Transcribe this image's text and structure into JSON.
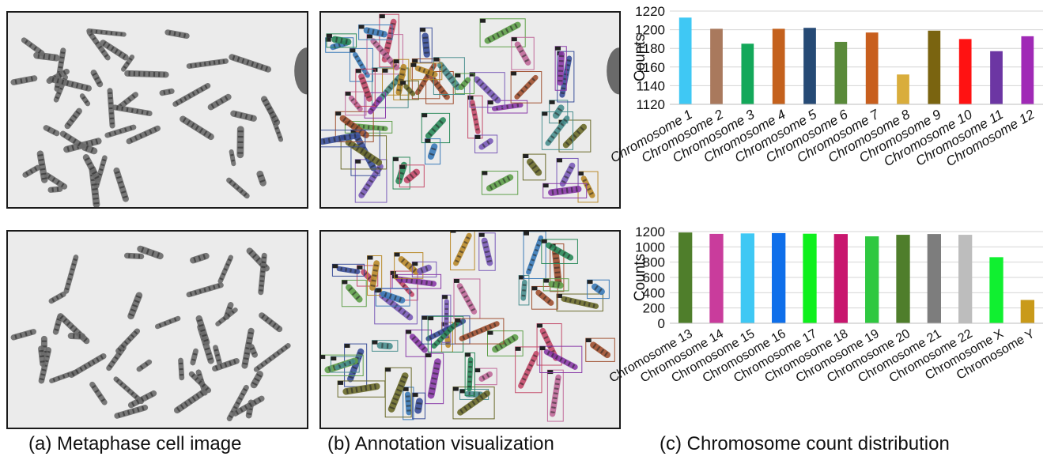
{
  "captions": {
    "a": "(a) Metaphase cell image",
    "b": "(b) Annotation visualization",
    "c": "(c) Chromosome count distribution"
  },
  "chart_data": [
    {
      "type": "bar",
      "ylabel": "Counts",
      "ylim": [
        1120,
        1220
      ],
      "yticks": [
        1120,
        1140,
        1160,
        1180,
        1200,
        1220
      ],
      "grid": true,
      "categories": [
        "Chromosome 1",
        "Chromosome 2",
        "Chromosome 3",
        "Chromosome 4",
        "Chromosome 5",
        "Chromosome 6",
        "Chromosome 7",
        "Chromosome 8",
        "Chromosome 9",
        "Chromosome 10",
        "Chromosome 11",
        "Chromosome 12"
      ],
      "values": [
        1213,
        1201,
        1185,
        1201,
        1202,
        1187,
        1197,
        1152,
        1199,
        1190,
        1177,
        1193
      ],
      "colors": [
        "#3fc8f4",
        "#a9795d",
        "#13a85a",
        "#c4611d",
        "#264a75",
        "#5a8a3a",
        "#c85f1e",
        "#d9ad3c",
        "#7a6410",
        "#ff1212",
        "#6c36a3",
        "#a02ab6"
      ]
    },
    {
      "type": "bar",
      "ylabel": "Counts",
      "ylim": [
        0,
        1200
      ],
      "yticks": [
        0,
        200,
        400,
        600,
        800,
        1000,
        1200
      ],
      "grid": true,
      "categories": [
        "Chromosome 13",
        "Chromosome 14",
        "Chromosome 15",
        "Chromosome 16",
        "Chromosome 17",
        "Chromosome 18",
        "Chromosome 19",
        "Chromosome 20",
        "Chromosome 21",
        "Chromosome 22",
        "Chromosome X",
        "Chromosome Y"
      ],
      "values": [
        1188,
        1170,
        1176,
        1180,
        1172,
        1168,
        1138,
        1158,
        1168,
        1158,
        865,
        305
      ],
      "colors": [
        "#4f7e2b",
        "#c93c9c",
        "#3fc8f4",
        "#0f6fea",
        "#0ef01c",
        "#c8166e",
        "#2fc840",
        "#4f7e2b",
        "#7d7d7d",
        "#bdbdbd",
        "#10f030",
        "#c99a1a"
      ]
    }
  ]
}
